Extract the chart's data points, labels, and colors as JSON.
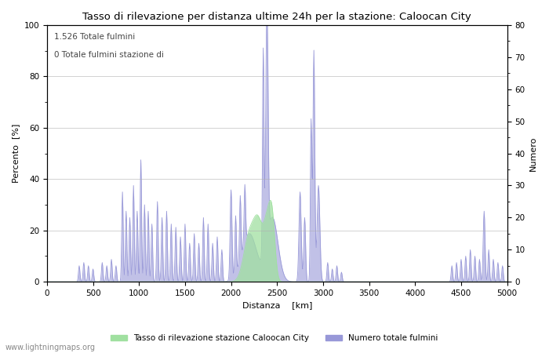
{
  "title": "Tasso di rilevazione per distanza ultime 24h per la stazione: Caloocan City",
  "xlabel": "Distanza  [km]",
  "ylabel_left": "Percento  [%]",
  "ylabel_right": "Numero",
  "annotation_line1": "1.526 Totale fulmini",
  "annotation_line2": "0 Totale fulmini stazione di",
  "legend_label1": "Tasso di rilevazione stazione Caloocan City",
  "legend_label2": "Numero totale fulmini",
  "footer": "www.lightningmaps.org",
  "ylim_left": [
    0,
    100
  ],
  "ylim_right": [
    0,
    80
  ],
  "xlim": [
    0,
    5000
  ],
  "xticks": [
    0,
    500,
    1000,
    1500,
    2000,
    2500,
    3000,
    3500,
    4000,
    4500,
    5000
  ],
  "yticks_left": [
    0,
    20,
    40,
    60,
    80,
    100
  ],
  "yticks_right": [
    0,
    10,
    20,
    30,
    40,
    50,
    60,
    70,
    80
  ],
  "color_blue": "#9898d8",
  "color_green": "#a0e0a0",
  "bg_color": "#ffffff",
  "grid_color": "#b0b0b0"
}
